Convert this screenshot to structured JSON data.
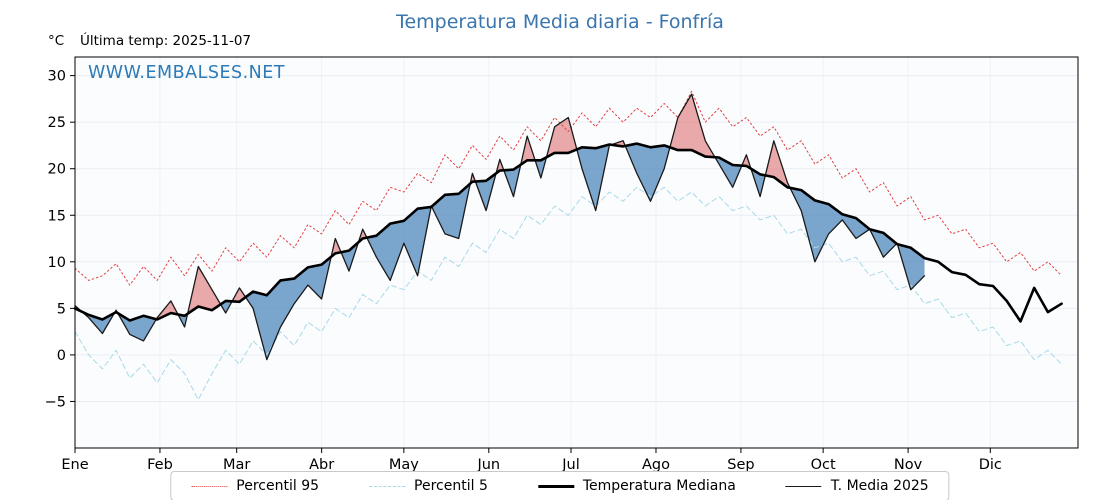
{
  "header": {
    "title": "Temperatura Media diaria - Fonfría",
    "unit": "°C",
    "last_temp": "Última temp: 2025-11-07",
    "watermark": "WWW.EMBALSES.NET"
  },
  "legend": {
    "items": [
      {
        "label": "Percentil 95"
      },
      {
        "label": "Percentil 5"
      },
      {
        "label": "Temperatura Mediana"
      },
      {
        "label": "T. Media 2025"
      }
    ]
  },
  "chart_data": {
    "type": "line",
    "title": "Temperatura Media diaria - Fonfría",
    "xlabel": "",
    "ylabel": "°C",
    "months": [
      "Ene",
      "Feb",
      "Mar",
      "Abr",
      "May",
      "Jun",
      "Jul",
      "Ago",
      "Sep",
      "Oct",
      "Nov",
      "Dic"
    ],
    "month_start_days": [
      0,
      31,
      59,
      90,
      120,
      151,
      181,
      212,
      243,
      273,
      304,
      334
    ],
    "yticks": [
      30,
      25,
      20,
      15,
      10,
      5,
      0,
      -5
    ],
    "ylim": [
      -10,
      32
    ],
    "xlim_days": [
      0,
      366
    ],
    "sample_interval_days": 5,
    "grid": true,
    "legend_position": "bottom",
    "plot_bg": "#fbfcfe",
    "grid_color": "#e9eef4",
    "fill": {
      "above_color": "#dd7070",
      "above_opacity": 0.6,
      "below_color": "#5a8fc0",
      "below_opacity": 0.8
    },
    "series": [
      {
        "name": "Percentil 95",
        "style": "dotted",
        "color": "#e04040",
        "width": 1,
        "values": [
          9.3,
          8.0,
          8.5,
          9.8,
          7.5,
          9.5,
          8.0,
          10.5,
          8.5,
          10.8,
          9.0,
          11.5,
          10.0,
          12.0,
          10.5,
          12.8,
          11.5,
          14.0,
          13.0,
          15.5,
          14.0,
          16.5,
          15.5,
          18.0,
          17.5,
          19.5,
          18.5,
          21.5,
          20.0,
          22.5,
          21.0,
          23.5,
          22.0,
          24.5,
          23.0,
          25.5,
          24.0,
          26.0,
          24.5,
          26.5,
          25.0,
          26.5,
          25.5,
          27.0,
          25.5,
          28.3,
          25.0,
          26.5,
          24.5,
          25.5,
          23.5,
          24.5,
          22.0,
          23.0,
          20.5,
          21.5,
          19.0,
          20.0,
          17.5,
          18.5,
          16.0,
          17.0,
          14.5,
          15.0,
          13.0,
          13.5,
          11.5,
          12.0,
          10.0,
          11.0,
          9.0,
          10.0,
          8.5
        ]
      },
      {
        "name": "Percentil 5",
        "style": "dashed",
        "color": "#a9d8e8",
        "width": 1,
        "values": [
          2.5,
          0.0,
          -1.5,
          0.5,
          -2.5,
          -1.0,
          -3.0,
          -0.5,
          -2.0,
          -4.8,
          -2.0,
          0.5,
          -1.0,
          1.5,
          0.0,
          2.5,
          1.0,
          3.5,
          2.5,
          5.0,
          4.0,
          6.5,
          5.5,
          7.5,
          7.0,
          9.0,
          8.0,
          10.5,
          9.5,
          12.0,
          11.0,
          13.5,
          12.5,
          15.0,
          14.0,
          16.0,
          15.0,
          17.0,
          16.0,
          17.5,
          16.5,
          18.0,
          17.0,
          18.0,
          16.5,
          17.5,
          16.0,
          17.0,
          15.5,
          16.0,
          14.5,
          15.0,
          13.0,
          13.5,
          11.5,
          12.0,
          10.0,
          10.5,
          8.5,
          9.0,
          7.0,
          7.5,
          5.5,
          6.0,
          4.0,
          4.5,
          2.5,
          3.0,
          1.0,
          1.5,
          -0.5,
          0.5,
          -1.0
        ]
      },
      {
        "name": "Temperatura Mediana",
        "style": "solid",
        "color": "#000000",
        "width": 2.6,
        "values": [
          5.0,
          4.3,
          3.8,
          4.6,
          3.7,
          4.2,
          3.8,
          4.5,
          4.2,
          5.2,
          4.8,
          5.8,
          5.7,
          6.8,
          6.4,
          8.0,
          8.2,
          9.4,
          9.7,
          10.9,
          11.2,
          12.5,
          12.8,
          14.1,
          14.4,
          15.7,
          15.9,
          17.2,
          17.3,
          18.6,
          18.7,
          19.8,
          19.9,
          20.9,
          20.9,
          21.7,
          21.7,
          22.3,
          22.2,
          22.6,
          22.4,
          22.7,
          22.3,
          22.5,
          22.0,
          22.0,
          21.3,
          21.2,
          20.4,
          20.3,
          19.4,
          19.1,
          18.0,
          17.7,
          16.6,
          16.2,
          15.1,
          14.7,
          13.5,
          13.1,
          11.9,
          11.5,
          10.4,
          10.0,
          8.9,
          8.6,
          7.6,
          7.4,
          5.8,
          3.6,
          7.2,
          4.6,
          5.5
        ]
      },
      {
        "name": "T. Media 2025",
        "style": "solid",
        "color": "#1a1a1a",
        "width": 1.3,
        "values": [
          5.3,
          4.0,
          2.3,
          4.8,
          2.2,
          1.5,
          4.0,
          5.8,
          3.0,
          9.5,
          7.0,
          4.5,
          7.2,
          5.0,
          -0.5,
          3.0,
          5.5,
          7.5,
          6.0,
          12.5,
          9.0,
          13.5,
          10.5,
          8.0,
          12.0,
          8.5,
          16.0,
          13.0,
          12.5,
          19.5,
          15.5,
          21.0,
          17.0,
          23.5,
          19.0,
          24.5,
          25.5,
          20.0,
          15.5,
          22.5,
          23.0,
          19.5,
          16.5,
          20.0,
          25.5,
          28.0,
          23.0,
          20.5,
          18.0,
          21.5,
          17.0,
          23.0,
          18.5,
          15.5,
          10.0,
          13.0,
          14.5,
          12.5,
          13.5,
          10.5,
          12.0,
          7.0,
          8.5
        ]
      }
    ]
  }
}
